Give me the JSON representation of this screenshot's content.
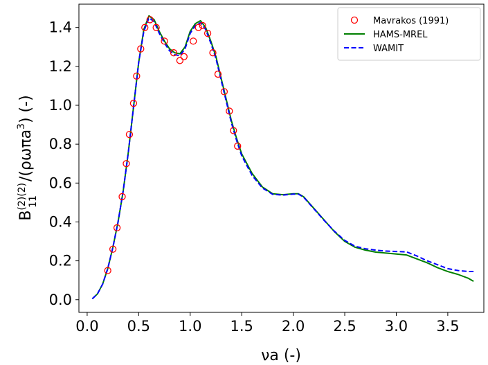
{
  "chart_data": {
    "type": "line",
    "xlabel": "νa (-)",
    "ylabel": {
      "main": "B",
      "subscript": "11",
      "superscript": "(2)(2)",
      "denominator": "/(ρωπa",
      "denominator_power": "3",
      "tail": ") (-)"
    },
    "xlim": [
      -0.08,
      3.85
    ],
    "ylim": [
      -0.065,
      1.52
    ],
    "xticks": [
      0.0,
      0.5,
      1.0,
      1.5,
      2.0,
      2.5,
      3.0,
      3.5
    ],
    "xtick_labels": [
      "0.0",
      "0.5",
      "1.0",
      "1.5",
      "2.0",
      "2.5",
      "3.0",
      "3.5"
    ],
    "yticks": [
      0.0,
      0.2,
      0.4,
      0.6,
      0.8,
      1.0,
      1.2,
      1.4
    ],
    "ytick_labels": [
      "0.0",
      "0.2",
      "0.4",
      "0.6",
      "0.8",
      "1.0",
      "1.2",
      "1.4"
    ],
    "grid": false,
    "legend_position": "top-right",
    "series": [
      {
        "name": "Mavrakos (1991)",
        "style": "markers",
        "marker": "open-circle",
        "color": "#ff0000",
        "x": [
          0.2,
          0.25,
          0.29,
          0.34,
          0.38,
          0.41,
          0.45,
          0.48,
          0.52,
          0.56,
          0.61,
          0.67,
          0.75,
          0.84,
          0.9,
          0.94,
          1.03,
          1.08,
          1.12,
          1.17,
          1.22,
          1.27,
          1.33,
          1.38,
          1.42,
          1.46
        ],
        "y": [
          0.15,
          0.26,
          0.37,
          0.53,
          0.7,
          0.85,
          1.01,
          1.15,
          1.29,
          1.4,
          1.44,
          1.4,
          1.33,
          1.27,
          1.23,
          1.25,
          1.33,
          1.4,
          1.41,
          1.37,
          1.27,
          1.16,
          1.07,
          0.97,
          0.87,
          0.79
        ]
      },
      {
        "name": "HAMS-MREL",
        "style": "solid",
        "color": "#007f00",
        "x": [
          0.05,
          0.1,
          0.15,
          0.2,
          0.25,
          0.3,
          0.35,
          0.4,
          0.45,
          0.5,
          0.55,
          0.6,
          0.65,
          0.7,
          0.75,
          0.8,
          0.85,
          0.9,
          0.95,
          1.0,
          1.05,
          1.1,
          1.15,
          1.2,
          1.25,
          1.3,
          1.35,
          1.4,
          1.45,
          1.5,
          1.6,
          1.7,
          1.8,
          1.9,
          2.0,
          2.05,
          2.1,
          2.2,
          2.3,
          2.4,
          2.5,
          2.6,
          2.7,
          2.8,
          2.9,
          3.0,
          3.1,
          3.2,
          3.3,
          3.4,
          3.5,
          3.6,
          3.7,
          3.75
        ],
        "y": [
          0.005,
          0.03,
          0.08,
          0.16,
          0.27,
          0.4,
          0.56,
          0.76,
          0.99,
          1.22,
          1.39,
          1.46,
          1.44,
          1.38,
          1.33,
          1.29,
          1.27,
          1.265,
          1.3,
          1.38,
          1.42,
          1.435,
          1.4,
          1.33,
          1.25,
          1.14,
          1.03,
          0.92,
          0.83,
          0.75,
          0.65,
          0.58,
          0.545,
          0.54,
          0.545,
          0.545,
          0.53,
          0.47,
          0.41,
          0.35,
          0.3,
          0.27,
          0.255,
          0.245,
          0.24,
          0.235,
          0.23,
          0.21,
          0.19,
          0.165,
          0.145,
          0.13,
          0.11,
          0.095
        ]
      },
      {
        "name": "WAMIT",
        "style": "dashed",
        "color": "#0000ff",
        "x": [
          0.05,
          0.1,
          0.15,
          0.2,
          0.25,
          0.3,
          0.35,
          0.4,
          0.45,
          0.5,
          0.55,
          0.6,
          0.65,
          0.7,
          0.75,
          0.8,
          0.85,
          0.9,
          0.95,
          1.0,
          1.05,
          1.1,
          1.15,
          1.2,
          1.25,
          1.3,
          1.35,
          1.4,
          1.45,
          1.5,
          1.6,
          1.7,
          1.8,
          1.9,
          2.0,
          2.05,
          2.1,
          2.2,
          2.3,
          2.4,
          2.5,
          2.6,
          2.7,
          2.8,
          2.9,
          3.0,
          3.1,
          3.2,
          3.3,
          3.4,
          3.5,
          3.6,
          3.7,
          3.75
        ],
        "y": [
          0.005,
          0.03,
          0.08,
          0.16,
          0.27,
          0.4,
          0.56,
          0.76,
          0.99,
          1.22,
          1.38,
          1.45,
          1.43,
          1.37,
          1.32,
          1.28,
          1.26,
          1.255,
          1.29,
          1.37,
          1.41,
          1.425,
          1.39,
          1.32,
          1.24,
          1.13,
          1.02,
          0.91,
          0.82,
          0.74,
          0.64,
          0.575,
          0.542,
          0.538,
          0.543,
          0.543,
          0.528,
          0.468,
          0.408,
          0.352,
          0.305,
          0.275,
          0.262,
          0.255,
          0.25,
          0.248,
          0.246,
          0.225,
          0.2,
          0.18,
          0.16,
          0.15,
          0.145,
          0.145
        ]
      }
    ]
  }
}
